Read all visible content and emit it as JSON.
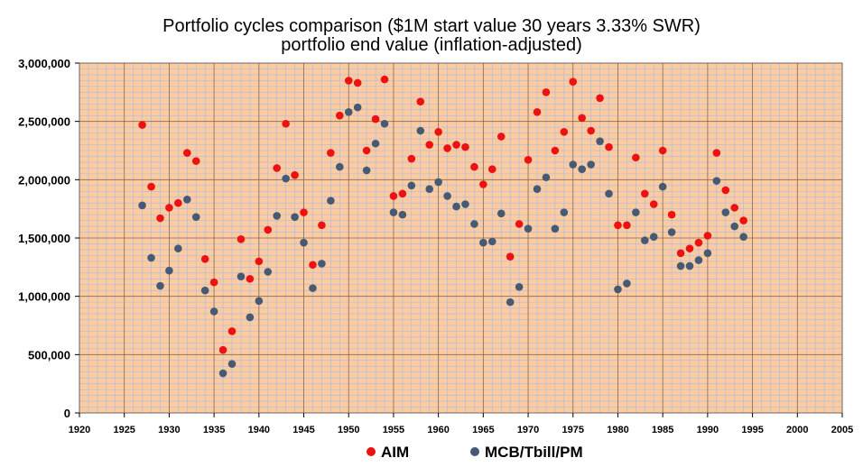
{
  "chart_data": {
    "type": "scatter",
    "title": [
      "Portfolio cycles comparison ($1M start value 30 years 3.33% SWR)",
      "portfolio end value (inflation-adjusted)"
    ],
    "xlabel": "",
    "ylabel": "",
    "xlim": [
      1920,
      2005
    ],
    "ylim": [
      0,
      3000000
    ],
    "x_ticks": [
      1920,
      1925,
      1930,
      1935,
      1940,
      1945,
      1950,
      1955,
      1960,
      1965,
      1970,
      1975,
      1980,
      1985,
      1990,
      1995,
      2000,
      2005
    ],
    "x_tick_labels": [
      "1920",
      "1925",
      "1930",
      "1935",
      "1940",
      "1945",
      "1950",
      "1955",
      "1960",
      "1965",
      "1970",
      "1975",
      "1980",
      "1985",
      "1990",
      "1995",
      "2000",
      "2005"
    ],
    "y_ticks": [
      0,
      500000,
      1000000,
      1500000,
      2000000,
      2500000,
      3000000
    ],
    "y_tick_labels": [
      "0",
      "500,000",
      "1,000,000",
      "1,500,000",
      "2,000,000",
      "2,500,000",
      "3,000,000"
    ],
    "grid": true,
    "background": "#fccca0",
    "minor_grid_color": "#a8b8e8",
    "major_grid_color": "#8a6a50",
    "legend_position": "bottom",
    "series": [
      {
        "name": "AIM",
        "color": "#ee1111",
        "x": [
          1927,
          1928,
          1929,
          1930,
          1931,
          1932,
          1933,
          1934,
          1935,
          1936,
          1937,
          1938,
          1939,
          1940,
          1941,
          1942,
          1943,
          1944,
          1945,
          1946,
          1947,
          1948,
          1949,
          1950,
          1951,
          1952,
          1953,
          1954,
          1955,
          1956,
          1957,
          1958,
          1959,
          1960,
          1961,
          1962,
          1963,
          1964,
          1965,
          1966,
          1967,
          1968,
          1969,
          1970,
          1971,
          1972,
          1973,
          1974,
          1975,
          1976,
          1977,
          1978,
          1979,
          1980,
          1981,
          1982,
          1983,
          1984,
          1985,
          1986,
          1987,
          1988,
          1989,
          1990,
          1991,
          1992,
          1993,
          1994
        ],
        "y": [
          2470000,
          1940000,
          1670000,
          1760000,
          1800000,
          2230000,
          2160000,
          1320000,
          1120000,
          540000,
          700000,
          1490000,
          1150000,
          1300000,
          1570000,
          2100000,
          2480000,
          2040000,
          1720000,
          1270000,
          1610000,
          2230000,
          2550000,
          2850000,
          2830000,
          2250000,
          2520000,
          2860000,
          1860000,
          1880000,
          2180000,
          2670000,
          2300000,
          2410000,
          2270000,
          2300000,
          2280000,
          2110000,
          1960000,
          2090000,
          2370000,
          1340000,
          1620000,
          2170000,
          2580000,
          2750000,
          2250000,
          2410000,
          2840000,
          2530000,
          2420000,
          2700000,
          2280000,
          1610000,
          1610000,
          2190000,
          1880000,
          1790000,
          2250000,
          1700000,
          1370000,
          1410000,
          1460000,
          1520000,
          2230000,
          1910000,
          1760000,
          1650000
        ]
      },
      {
        "name": "MCB/Tbill/PM",
        "color": "#455a75",
        "x": [
          1927,
          1928,
          1929,
          1930,
          1931,
          1932,
          1933,
          1934,
          1935,
          1936,
          1937,
          1938,
          1939,
          1940,
          1941,
          1942,
          1943,
          1944,
          1945,
          1946,
          1947,
          1948,
          1949,
          1950,
          1951,
          1952,
          1953,
          1954,
          1955,
          1956,
          1957,
          1958,
          1959,
          1960,
          1961,
          1962,
          1963,
          1964,
          1965,
          1966,
          1967,
          1968,
          1969,
          1970,
          1971,
          1972,
          1973,
          1974,
          1975,
          1976,
          1977,
          1978,
          1979,
          1980,
          1981,
          1982,
          1983,
          1984,
          1985,
          1986,
          1987,
          1988,
          1989,
          1990,
          1991,
          1992,
          1993,
          1994
        ],
        "y": [
          1780000,
          1330000,
          1090000,
          1220000,
          1410000,
          1830000,
          1680000,
          1050000,
          870000,
          340000,
          420000,
          1170000,
          820000,
          960000,
          1210000,
          1690000,
          2010000,
          1680000,
          1460000,
          1070000,
          1280000,
          1820000,
          2110000,
          2580000,
          2620000,
          2080000,
          2310000,
          2480000,
          1720000,
          1700000,
          1950000,
          2420000,
          1920000,
          1980000,
          1860000,
          1770000,
          1790000,
          1620000,
          1460000,
          1470000,
          1710000,
          950000,
          1080000,
          1580000,
          1920000,
          2020000,
          1580000,
          1720000,
          2130000,
          2090000,
          2130000,
          2330000,
          1880000,
          1060000,
          1110000,
          1720000,
          1480000,
          1510000,
          1940000,
          1550000,
          1260000,
          1260000,
          1310000,
          1370000,
          1990000,
          1720000,
          1600000,
          1510000
        ]
      }
    ]
  }
}
